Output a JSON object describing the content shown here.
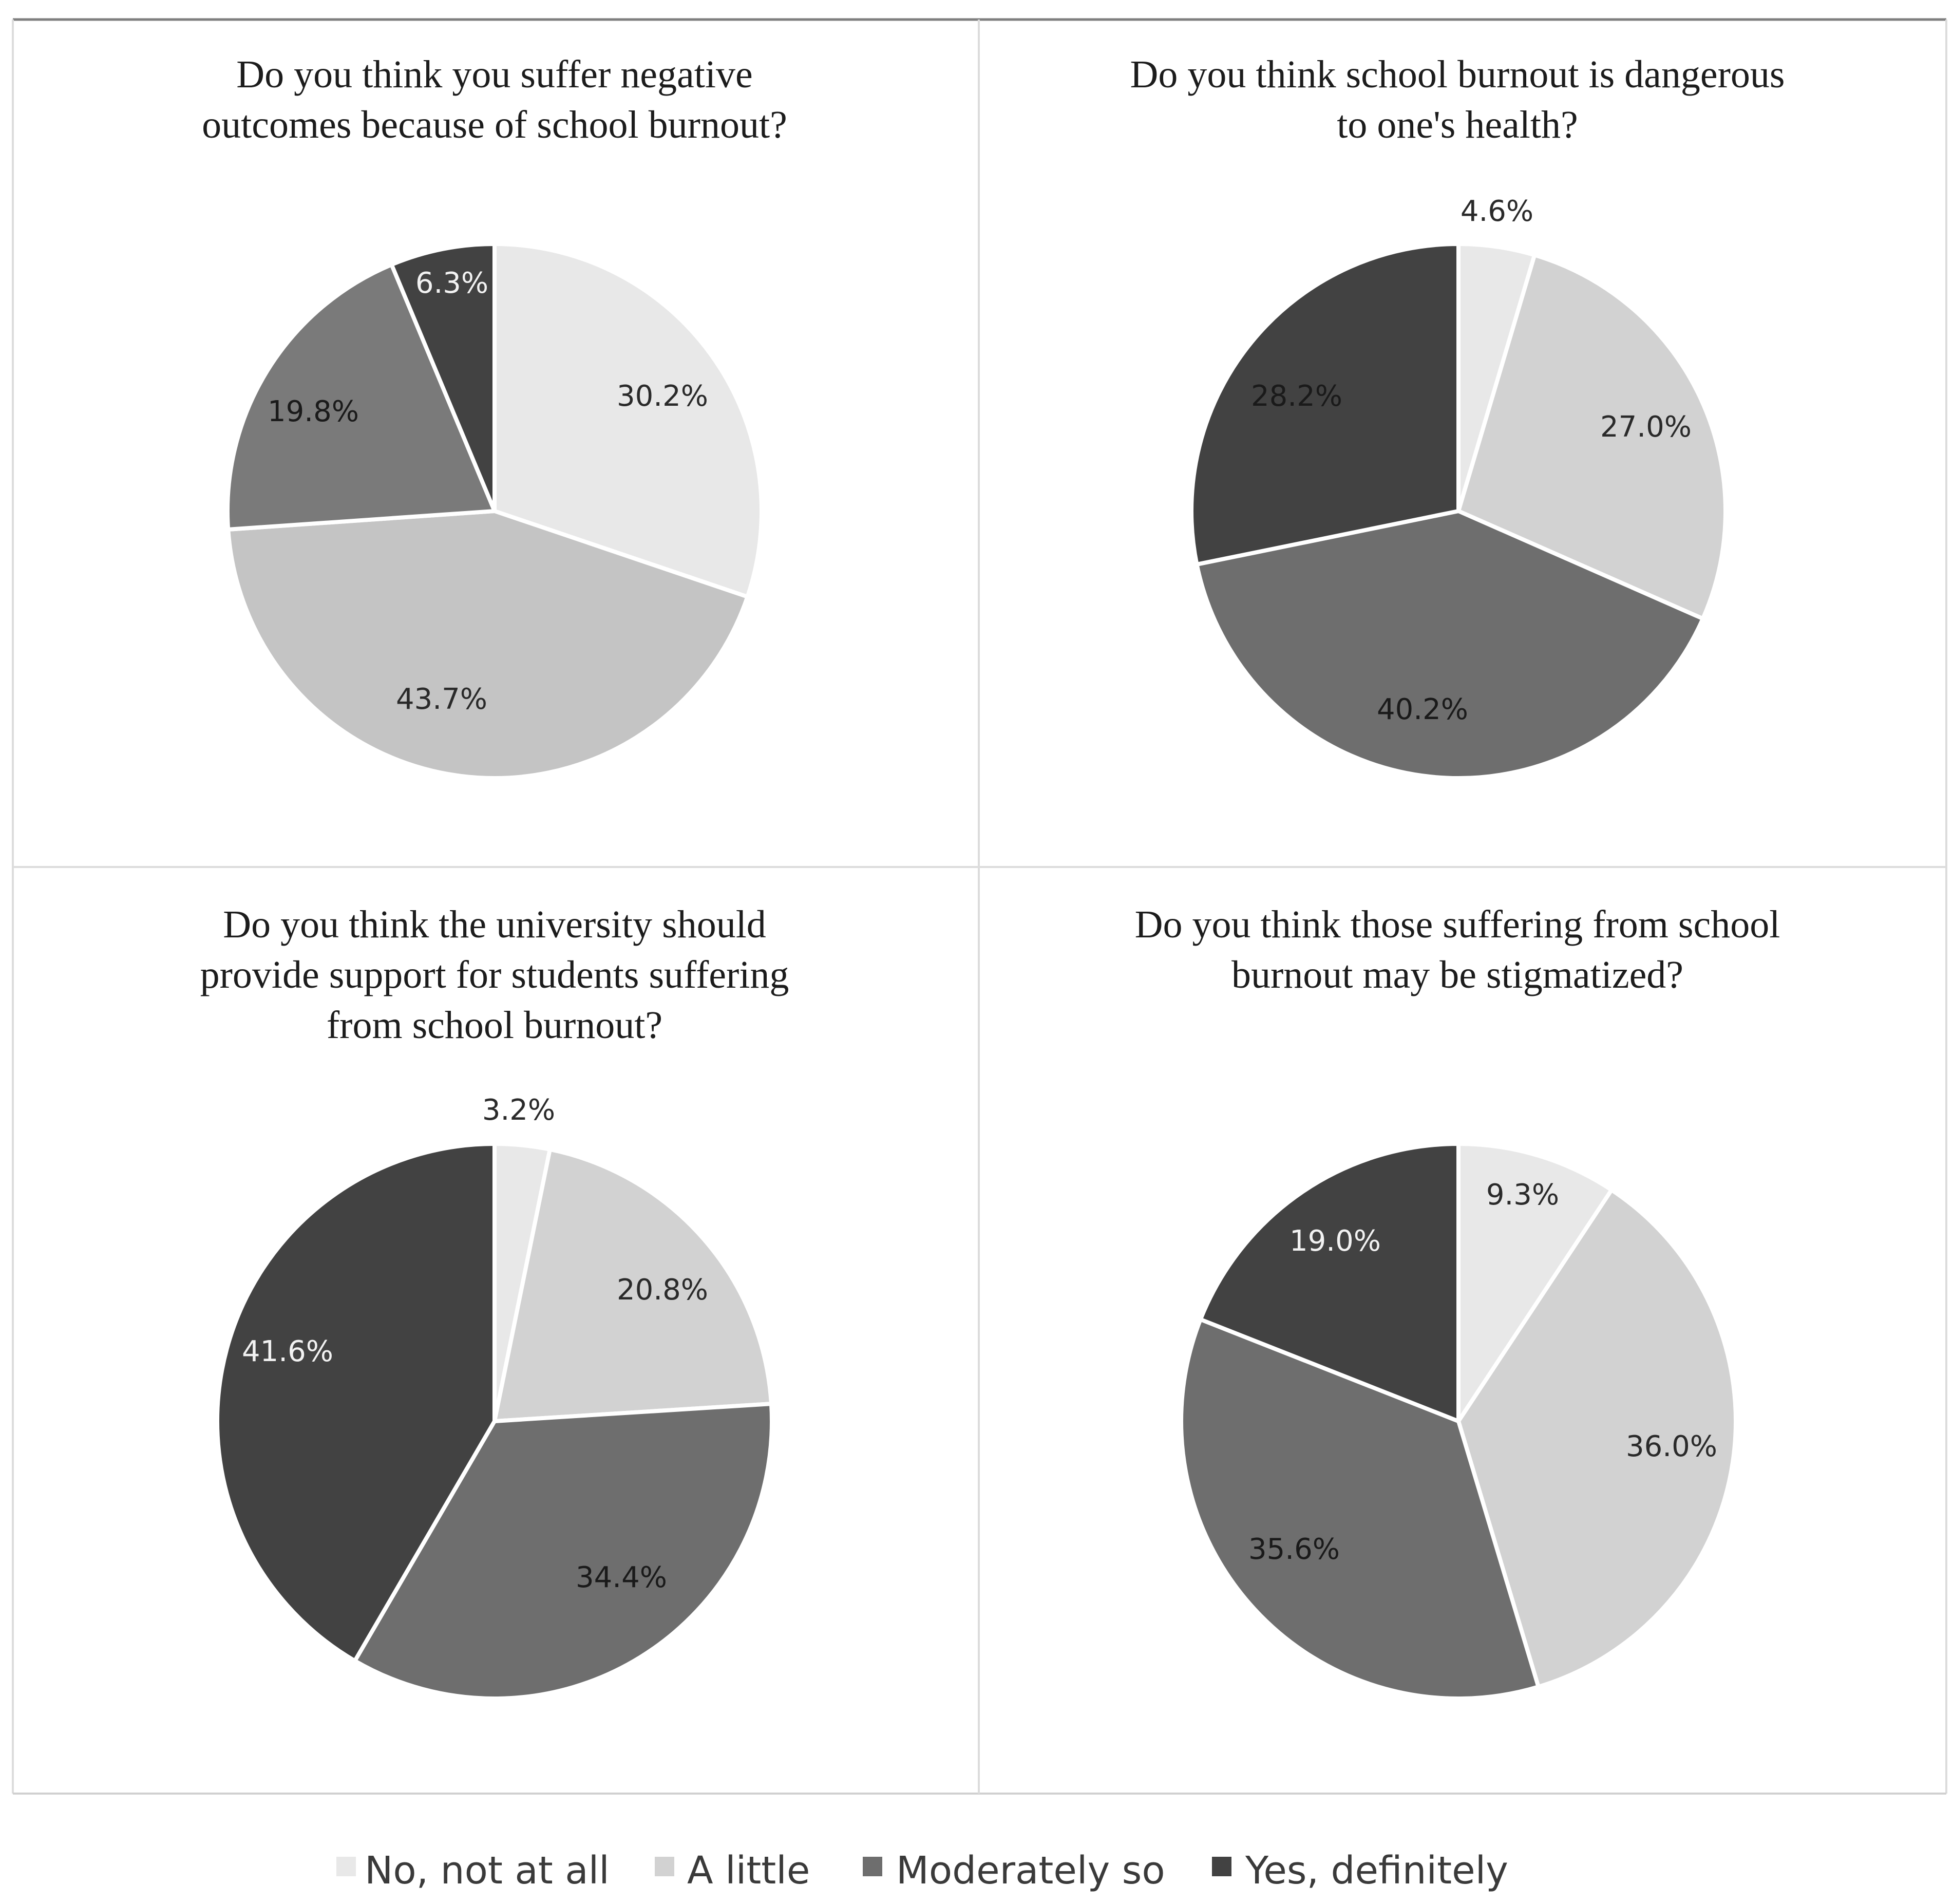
{
  "chart_data": [
    {
      "type": "pie",
      "title_lines": [
        "Do you think you suffer negative",
        "outcomes because of school burnout?"
      ],
      "categories": [
        "No, not at all",
        "A little",
        "Moderately so",
        "Yes, definitely"
      ],
      "values": [
        30.2,
        43.7,
        19.8,
        6.3
      ],
      "labels": [
        "30.2%",
        "43.7%",
        "19.8%",
        "6.3%"
      ],
      "color_index": [
        0,
        1,
        2,
        3
      ]
    },
    {
      "type": "pie",
      "title_lines": [
        "Do you think school burnout is dangerous",
        "to one's health?"
      ],
      "categories": [
        "No, not at all",
        "A little",
        "Moderately so",
        "Yes, definitely"
      ],
      "values": [
        4.6,
        27.0,
        40.2,
        28.2
      ],
      "labels": [
        "4.6%",
        "27.0%",
        "40.2%",
        "28.2%"
      ],
      "color_index": [
        0,
        1,
        2,
        3
      ]
    },
    {
      "type": "pie",
      "title_lines": [
        "Do you think the university should",
        "provide support for students suffering",
        "from school burnout?"
      ],
      "categories": [
        "No, not at all",
        "A little",
        "Moderately so",
        "Yes, definitely"
      ],
      "values": [
        3.2,
        20.8,
        34.4,
        41.6
      ],
      "labels": [
        "3.2%",
        "20.8%",
        "34.4%",
        "41.6%"
      ],
      "color_index": [
        0,
        1,
        2,
        3
      ]
    },
    {
      "type": "pie",
      "title_lines": [
        "Do you think those suffering from school",
        "burnout may be stigmatized?"
      ],
      "categories": [
        "No, not at all",
        "A little",
        "Moderately so",
        "Yes, definitely"
      ],
      "values": [
        9.3,
        36.0,
        35.6,
        19.0
      ],
      "labels": [
        "9.3%",
        "36.0%",
        "35.6%",
        "19.0%"
      ],
      "color_index": [
        0,
        1,
        2,
        3
      ]
    }
  ],
  "legend": {
    "placement": "bottom",
    "items": [
      {
        "label": "No, not at all",
        "color": "#e8e8e8"
      },
      {
        "label": "A little",
        "color": "#d2d2d2"
      },
      {
        "label": "Moderately so",
        "color": "#6e6e6e"
      },
      {
        "label": "Yes, definitely",
        "color": "#424242"
      }
    ]
  },
  "slice_colors": [
    "#e8e8e8",
    "#d2d2d2",
    "#6e6e6e",
    "#424242"
  ],
  "first_chart_slice_colors": [
    "#e8e8e8",
    "#c4c4c4",
    "#7a7a7a",
    "#424242"
  ],
  "label_colors": [
    "#2a2a2a",
    "#2a2a2a",
    "#1a1a1a",
    "#f2f2f2"
  ]
}
